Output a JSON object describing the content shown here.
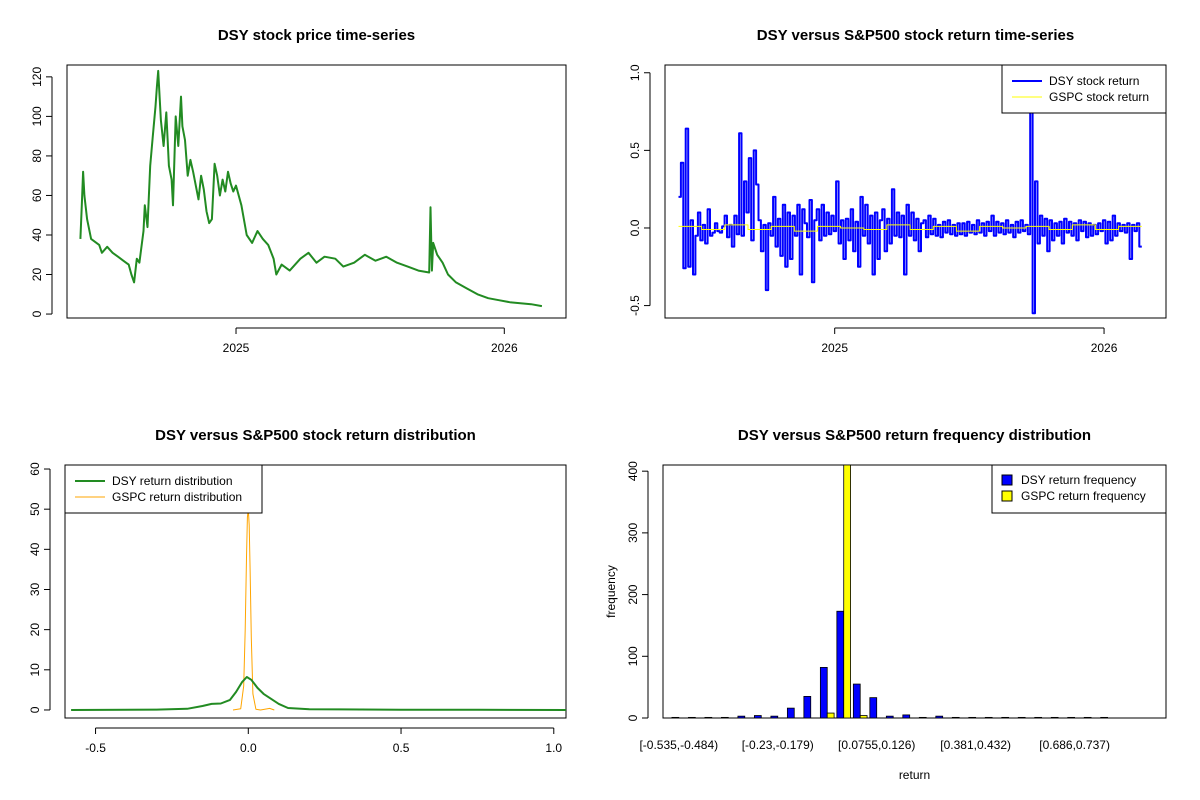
{
  "figure": "R plot window with four panels",
  "chart_data": [
    {
      "id": "p1",
      "type": "line",
      "title": "DSY stock price time-series",
      "xlabel": "",
      "ylabel": "",
      "x_ticks": [
        {
          "value": 2025.0,
          "label": "2025"
        },
        {
          "value": 2026.0,
          "label": "2026"
        }
      ],
      "y_ticks": [
        0,
        20,
        40,
        60,
        80,
        100,
        120
      ],
      "xlim": [
        2024.37,
        2026.23
      ],
      "ylim": [
        -2,
        126
      ],
      "series": [
        {
          "name": "DSY price",
          "color": "#228B22",
          "points": [
            [
              2024.42,
              38
            ],
            [
              2024.425,
              55
            ],
            [
              2024.43,
              72
            ],
            [
              2024.435,
              60
            ],
            [
              2024.445,
              48
            ],
            [
              2024.46,
              38
            ],
            [
              2024.49,
              35
            ],
            [
              2024.5,
              31
            ],
            [
              2024.52,
              34
            ],
            [
              2024.54,
              31
            ],
            [
              2024.56,
              29
            ],
            [
              2024.58,
              27
            ],
            [
              2024.6,
              25
            ],
            [
              2024.61,
              20
            ],
            [
              2024.62,
              16
            ],
            [
              2024.63,
              28
            ],
            [
              2024.64,
              26
            ],
            [
              2024.655,
              42
            ],
            [
              2024.66,
              55
            ],
            [
              2024.67,
              44
            ],
            [
              2024.68,
              75
            ],
            [
              2024.69,
              90
            ],
            [
              2024.7,
              105
            ],
            [
              2024.705,
              115
            ],
            [
              2024.71,
              123
            ],
            [
              2024.72,
              98
            ],
            [
              2024.73,
              85
            ],
            [
              2024.74,
              102
            ],
            [
              2024.75,
              75
            ],
            [
              2024.76,
              68
            ],
            [
              2024.765,
              55
            ],
            [
              2024.775,
              100
            ],
            [
              2024.785,
              85
            ],
            [
              2024.795,
              110
            ],
            [
              2024.8,
              95
            ],
            [
              2024.81,
              88
            ],
            [
              2024.82,
              70
            ],
            [
              2024.83,
              78
            ],
            [
              2024.84,
              72
            ],
            [
              2024.85,
              65
            ],
            [
              2024.86,
              58
            ],
            [
              2024.87,
              70
            ],
            [
              2024.88,
              63
            ],
            [
              2024.89,
              52
            ],
            [
              2024.9,
              46
            ],
            [
              2024.91,
              48
            ],
            [
              2024.92,
              76
            ],
            [
              2024.93,
              70
            ],
            [
              2024.94,
              60
            ],
            [
              2024.95,
              68
            ],
            [
              2024.96,
              62
            ],
            [
              2024.97,
              72
            ],
            [
              2024.98,
              66
            ],
            [
              2024.99,
              62
            ],
            [
              2025.0,
              65
            ],
            [
              2025.02,
              55
            ],
            [
              2025.04,
              40
            ],
            [
              2025.06,
              36
            ],
            [
              2025.08,
              42
            ],
            [
              2025.1,
              38
            ],
            [
              2025.12,
              35
            ],
            [
              2025.14,
              28
            ],
            [
              2025.15,
              20
            ],
            [
              2025.17,
              25
            ],
            [
              2025.2,
              22
            ],
            [
              2025.24,
              28
            ],
            [
              2025.27,
              31
            ],
            [
              2025.3,
              26
            ],
            [
              2025.33,
              29
            ],
            [
              2025.37,
              28
            ],
            [
              2025.4,
              24
            ],
            [
              2025.44,
              26
            ],
            [
              2025.48,
              30
            ],
            [
              2025.52,
              27
            ],
            [
              2025.56,
              29
            ],
            [
              2025.6,
              26
            ],
            [
              2025.64,
              24
            ],
            [
              2025.68,
              22
            ],
            [
              2025.72,
              21
            ],
            [
              2025.725,
              54
            ],
            [
              2025.73,
              22
            ],
            [
              2025.735,
              36
            ],
            [
              2025.75,
              30
            ],
            [
              2025.77,
              26
            ],
            [
              2025.79,
              20
            ],
            [
              2025.82,
              16
            ],
            [
              2025.86,
              13
            ],
            [
              2025.9,
              10
            ],
            [
              2025.94,
              8
            ],
            [
              2025.98,
              7
            ],
            [
              2026.02,
              6
            ],
            [
              2026.06,
              5.5
            ],
            [
              2026.1,
              5
            ],
            [
              2026.14,
              4
            ]
          ]
        }
      ]
    },
    {
      "id": "p2",
      "type": "line",
      "title": "DSY versus S&P500 stock return time-series",
      "xlabel": "",
      "ylabel": "",
      "x_ticks": [
        {
          "value": 2025.0,
          "label": "2025"
        },
        {
          "value": 2026.0,
          "label": "2026"
        }
      ],
      "y_ticks": [
        {
          "value": -0.5,
          "label": "-0.5"
        },
        {
          "value": 0.0,
          "label": "0.0"
        },
        {
          "value": 0.5,
          "label": "0.5"
        },
        {
          "value": 1.0,
          "label": "1.0"
        }
      ],
      "xlim": [
        2024.37,
        2026.23
      ],
      "ylim": [
        -0.58,
        1.05
      ],
      "legend": {
        "position": "top-right",
        "entries": [
          {
            "label": "DSY stock return",
            "color": "#0000FF"
          },
          {
            "label": "GSPC stock return",
            "color": "#FFFF00"
          }
        ]
      },
      "series": [
        {
          "name": "DSY stock return",
          "color": "#0000FF",
          "x_start": 2024.42,
          "x_end": 2026.14,
          "values": [
            0.2,
            0.42,
            -0.26,
            0.64,
            -0.25,
            0.05,
            -0.3,
            -0.05,
            0.1,
            -0.08,
            0.02,
            -0.1,
            0.12,
            -0.05,
            -0.03,
            0.03,
            -0.02,
            -0.03,
            0.01,
            0.08,
            -0.06,
            0.02,
            -0.12,
            0.08,
            -0.04,
            0.61,
            -0.05,
            0.3,
            0.1,
            0.45,
            -0.08,
            0.5,
            0.28,
            0.05,
            -0.15,
            0.02,
            -0.4,
            0.03,
            -0.05,
            0.2,
            -0.12,
            0.06,
            -0.18,
            0.15,
            -0.25,
            0.1,
            -0.2,
            0.08,
            -0.05,
            0.15,
            -0.3,
            0.12,
            0.03,
            -0.06,
            0.18,
            -0.35,
            0.05,
            0.12,
            -0.08,
            0.15,
            -0.05,
            0.1,
            -0.04,
            0.08,
            -0.02,
            0.3,
            -0.1,
            0.05,
            -0.2,
            0.06,
            -0.08,
            0.12,
            -0.15,
            0.04,
            -0.25,
            0.2,
            -0.05,
            0.15,
            -0.1,
            0.08,
            -0.3,
            0.1,
            -0.2,
            0.05,
            0.12,
            -0.15,
            0.06,
            -0.1,
            0.25,
            -0.05,
            0.1,
            -0.06,
            0.08,
            -0.3,
            0.15,
            -0.05,
            0.1,
            -0.08,
            0.06,
            -0.15,
            0.03,
            0.05,
            -0.06,
            0.08,
            -0.04,
            0.06,
            -0.05,
            0.02,
            -0.06,
            0.04,
            -0.03,
            0.05,
            -0.04,
            0.02,
            -0.05,
            0.03,
            -0.04,
            0.03,
            -0.05,
            0.04,
            -0.03,
            0.02,
            -0.04,
            0.05,
            -0.03,
            0.03,
            -0.05,
            0.04,
            -0.02,
            0.08,
            -0.05,
            0.04,
            -0.03,
            0.03,
            -0.04,
            0.05,
            -0.03,
            0.02,
            -0.06,
            0.04,
            -0.03,
            0.05,
            -0.02,
            0.02,
            -0.04,
            0.75,
            -0.55,
            0.3,
            -0.1,
            0.08,
            -0.05,
            0.06,
            -0.15,
            0.05,
            -0.08,
            0.03,
            -0.05,
            0.04,
            -0.1,
            0.06,
            -0.03,
            0.04,
            -0.05,
            0.03,
            -0.08,
            0.05,
            -0.02,
            0.04,
            -0.06,
            0.03,
            -0.05,
            0.02,
            -0.04,
            0.03,
            -0.02,
            0.05,
            -0.1,
            0.04,
            -0.08,
            0.08,
            -0.05,
            0.03,
            -0.02,
            0.02,
            -0.03,
            0.03,
            -0.2,
            0.02,
            -0.02,
            0.03,
            -0.12
          ]
        },
        {
          "name": "GSPC stock return",
          "color": "#FFFF00",
          "x_start": 2024.42,
          "x_end": 2026.14,
          "values": [
            0.01,
            -0.01,
            0.02,
            -0.01,
            0.01,
            -0.02,
            0.01,
            0.0,
            -0.01,
            0.02,
            -0.01,
            0.01,
            -0.02,
            0.01,
            0.0,
            0.01,
            -0.01,
            0.02,
            -0.01,
            0.01
          ]
        }
      ]
    },
    {
      "id": "p3",
      "type": "line",
      "title": "DSY versus S&P500 stock return distribution",
      "xlabel": "",
      "ylabel": "",
      "x_ticks": [
        {
          "value": -0.5,
          "label": "-0.5"
        },
        {
          "value": 0.0,
          "label": "0.0"
        },
        {
          "value": 0.5,
          "label": "0.5"
        },
        {
          "value": 1.0,
          "label": "1.0"
        }
      ],
      "y_ticks": [
        0,
        10,
        20,
        30,
        40,
        50,
        60
      ],
      "xlim": [
        -0.6,
        1.04
      ],
      "ylim": [
        -2,
        61
      ],
      "legend": {
        "position": "top-left",
        "entries": [
          {
            "label": "DSY return distribution",
            "color": "#228B22"
          },
          {
            "label": "GSPC return distribution",
            "color": "#FFA500"
          }
        ]
      },
      "series": [
        {
          "name": "DSY return distribution",
          "color": "#228B22",
          "points": [
            [
              -0.58,
              0
            ],
            [
              -0.3,
              0.1
            ],
            [
              -0.2,
              0.3
            ],
            [
              -0.15,
              1.0
            ],
            [
              -0.12,
              1.5
            ],
            [
              -0.09,
              1.6
            ],
            [
              -0.06,
              2.5
            ],
            [
              -0.04,
              4.5
            ],
            [
              -0.02,
              7.0
            ],
            [
              -0.005,
              8.2
            ],
            [
              0.01,
              7.5
            ],
            [
              0.03,
              5.5
            ],
            [
              0.05,
              4.0
            ],
            [
              0.07,
              3.0
            ],
            [
              0.1,
              1.5
            ],
            [
              0.13,
              0.5
            ],
            [
              0.2,
              0.2
            ],
            [
              0.3,
              0.15
            ],
            [
              0.5,
              0.05
            ],
            [
              0.75,
              0.05
            ],
            [
              1.04,
              0
            ]
          ]
        },
        {
          "name": "GSPC return distribution",
          "color": "#FFA500",
          "points": [
            [
              -0.05,
              0
            ],
            [
              -0.025,
              0.3
            ],
            [
              -0.015,
              6
            ],
            [
              -0.01,
              20
            ],
            [
              -0.006,
              38
            ],
            [
              -0.003,
              48
            ],
            [
              0.0,
              50
            ],
            [
              0.003,
              46
            ],
            [
              0.006,
              35
            ],
            [
              0.01,
              18
            ],
            [
              0.015,
              4
            ],
            [
              0.025,
              0.2
            ],
            [
              0.04,
              0
            ],
            [
              0.07,
              0.4
            ],
            [
              0.085,
              0
            ]
          ]
        }
      ]
    },
    {
      "id": "p4",
      "type": "bar",
      "title": "DSY versus S&P500 return frequency distribution",
      "xlabel": "return",
      "ylabel": "frequency",
      "y_ticks": [
        0,
        100,
        200,
        300,
        400
      ],
      "ylim": [
        0,
        410
      ],
      "x_tick_labels": [
        {
          "index": 0,
          "label": "[-0.535,-0.484)"
        },
        {
          "index": 6,
          "label": "[-0.23,-0.179)"
        },
        {
          "index": 12,
          "label": "[0.0755,0.126)"
        },
        {
          "index": 18,
          "label": "[0.381,0.432)"
        },
        {
          "index": 24,
          "label": "[0.686,0.737)"
        }
      ],
      "legend": {
        "position": "top-right",
        "entries": [
          {
            "label": "DSY return frequency",
            "color": "#0000FF"
          },
          {
            "label": "GSPC return frequency",
            "color": "#FFFF00"
          }
        ]
      },
      "series": [
        {
          "name": "DSY return frequency",
          "color": "#0000FF",
          "values": [
            1,
            1,
            1,
            1,
            3,
            4,
            3,
            16,
            35,
            82,
            173,
            55,
            33,
            3,
            5,
            1,
            3,
            1,
            1,
            1,
            1,
            1,
            1,
            1,
            1,
            1,
            1,
            0,
            0,
            0
          ]
        },
        {
          "name": "GSPC return frequency",
          "color": "#FFFF00",
          "values": [
            0,
            0,
            0,
            0,
            0,
            0,
            0,
            0,
            0,
            8,
            410,
            4,
            0,
            0,
            0,
            0,
            0,
            0,
            0,
            0,
            0,
            0,
            0,
            0,
            0,
            0,
            0,
            0,
            0,
            0
          ]
        }
      ]
    }
  ]
}
